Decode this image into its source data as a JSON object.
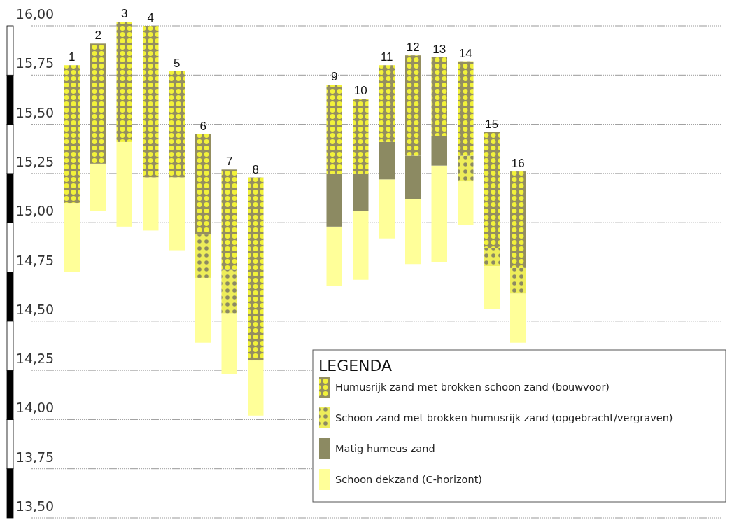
{
  "chart_data": {
    "type": "bar",
    "categories": [
      "1",
      "2",
      "3",
      "4",
      "5",
      "6",
      "7",
      "8",
      null,
      null,
      "9",
      "10",
      "11",
      "12",
      "13",
      "14",
      "15",
      "16"
    ],
    "series": [
      {
        "name": "Schoon dekzand (C-horizont)",
        "color": "#ffff99",
        "base": [
          14.75,
          15.06,
          14.98,
          14.96,
          14.86,
          14.39,
          14.23,
          14.02,
          null,
          null,
          14.68,
          14.71,
          14.92,
          14.79,
          14.8,
          14.99,
          14.56,
          14.39
        ],
        "values": [
          0.35,
          0.24,
          0.43,
          0.27,
          0.37,
          0.33,
          0.31,
          0.28,
          null,
          null,
          0.3,
          0.35,
          0.3,
          0.33,
          0.49,
          0.22,
          0.22,
          0.25
        ]
      },
      {
        "name": "Matig humeus zand",
        "color": "#8c8a62",
        "base": [
          null,
          null,
          null,
          null,
          null,
          null,
          null,
          null,
          null,
          null,
          14.98,
          15.06,
          15.22,
          15.12,
          15.29,
          null,
          null,
          null
        ],
        "values": [
          null,
          null,
          null,
          null,
          null,
          null,
          null,
          null,
          null,
          null,
          0.27,
          0.19,
          0.19,
          0.22,
          0.15,
          null,
          null,
          null
        ]
      },
      {
        "name": "Schoon zand met brokken humusrijk zand (opgebracht/vergraven)",
        "color": "#eded5a",
        "base": [
          null,
          null,
          null,
          null,
          null,
          14.72,
          14.54,
          null,
          null,
          null,
          null,
          null,
          null,
          null,
          null,
          15.21,
          14.78,
          14.64
        ],
        "values": [
          null,
          null,
          null,
          null,
          null,
          0.22,
          0.22,
          null,
          null,
          null,
          null,
          null,
          null,
          null,
          null,
          0.13,
          0.09,
          0.13
        ]
      },
      {
        "name": "Humusrijk zand met brokken schoon zand (bouwvoor)",
        "color": "#948e60",
        "base": [
          15.1,
          15.3,
          15.41,
          15.23,
          15.23,
          14.94,
          14.76,
          14.3,
          null,
          null,
          15.25,
          15.25,
          15.41,
          15.34,
          15.44,
          15.34,
          14.87,
          14.77
        ],
        "values": [
          0.7,
          0.61,
          0.61,
          0.77,
          0.54,
          0.51,
          0.51,
          0.93,
          null,
          null,
          0.45,
          0.38,
          0.39,
          0.51,
          0.4,
          0.48,
          0.59,
          0.49
        ]
      }
    ],
    "ylim": [
      13.5,
      16.0
    ],
    "yticks": [
      {
        "value": 13.5,
        "label": "13,50"
      },
      {
        "value": 13.75,
        "label": "13,75"
      },
      {
        "value": 14.0,
        "label": "14,00"
      },
      {
        "value": 14.25,
        "label": "14,25"
      },
      {
        "value": 14.5,
        "label": "14,50"
      },
      {
        "value": 14.75,
        "label": "14,75"
      },
      {
        "value": 15.0,
        "label": "15,00"
      },
      {
        "value": 15.25,
        "label": "15,25"
      },
      {
        "value": 15.5,
        "label": "15,50"
      },
      {
        "value": 15.75,
        "label": "15,75"
      },
      {
        "value": 16.0,
        "label": "16,00"
      }
    ],
    "grid": "y",
    "legend": "bottom right",
    "legend_title": "LEGENDA"
  }
}
